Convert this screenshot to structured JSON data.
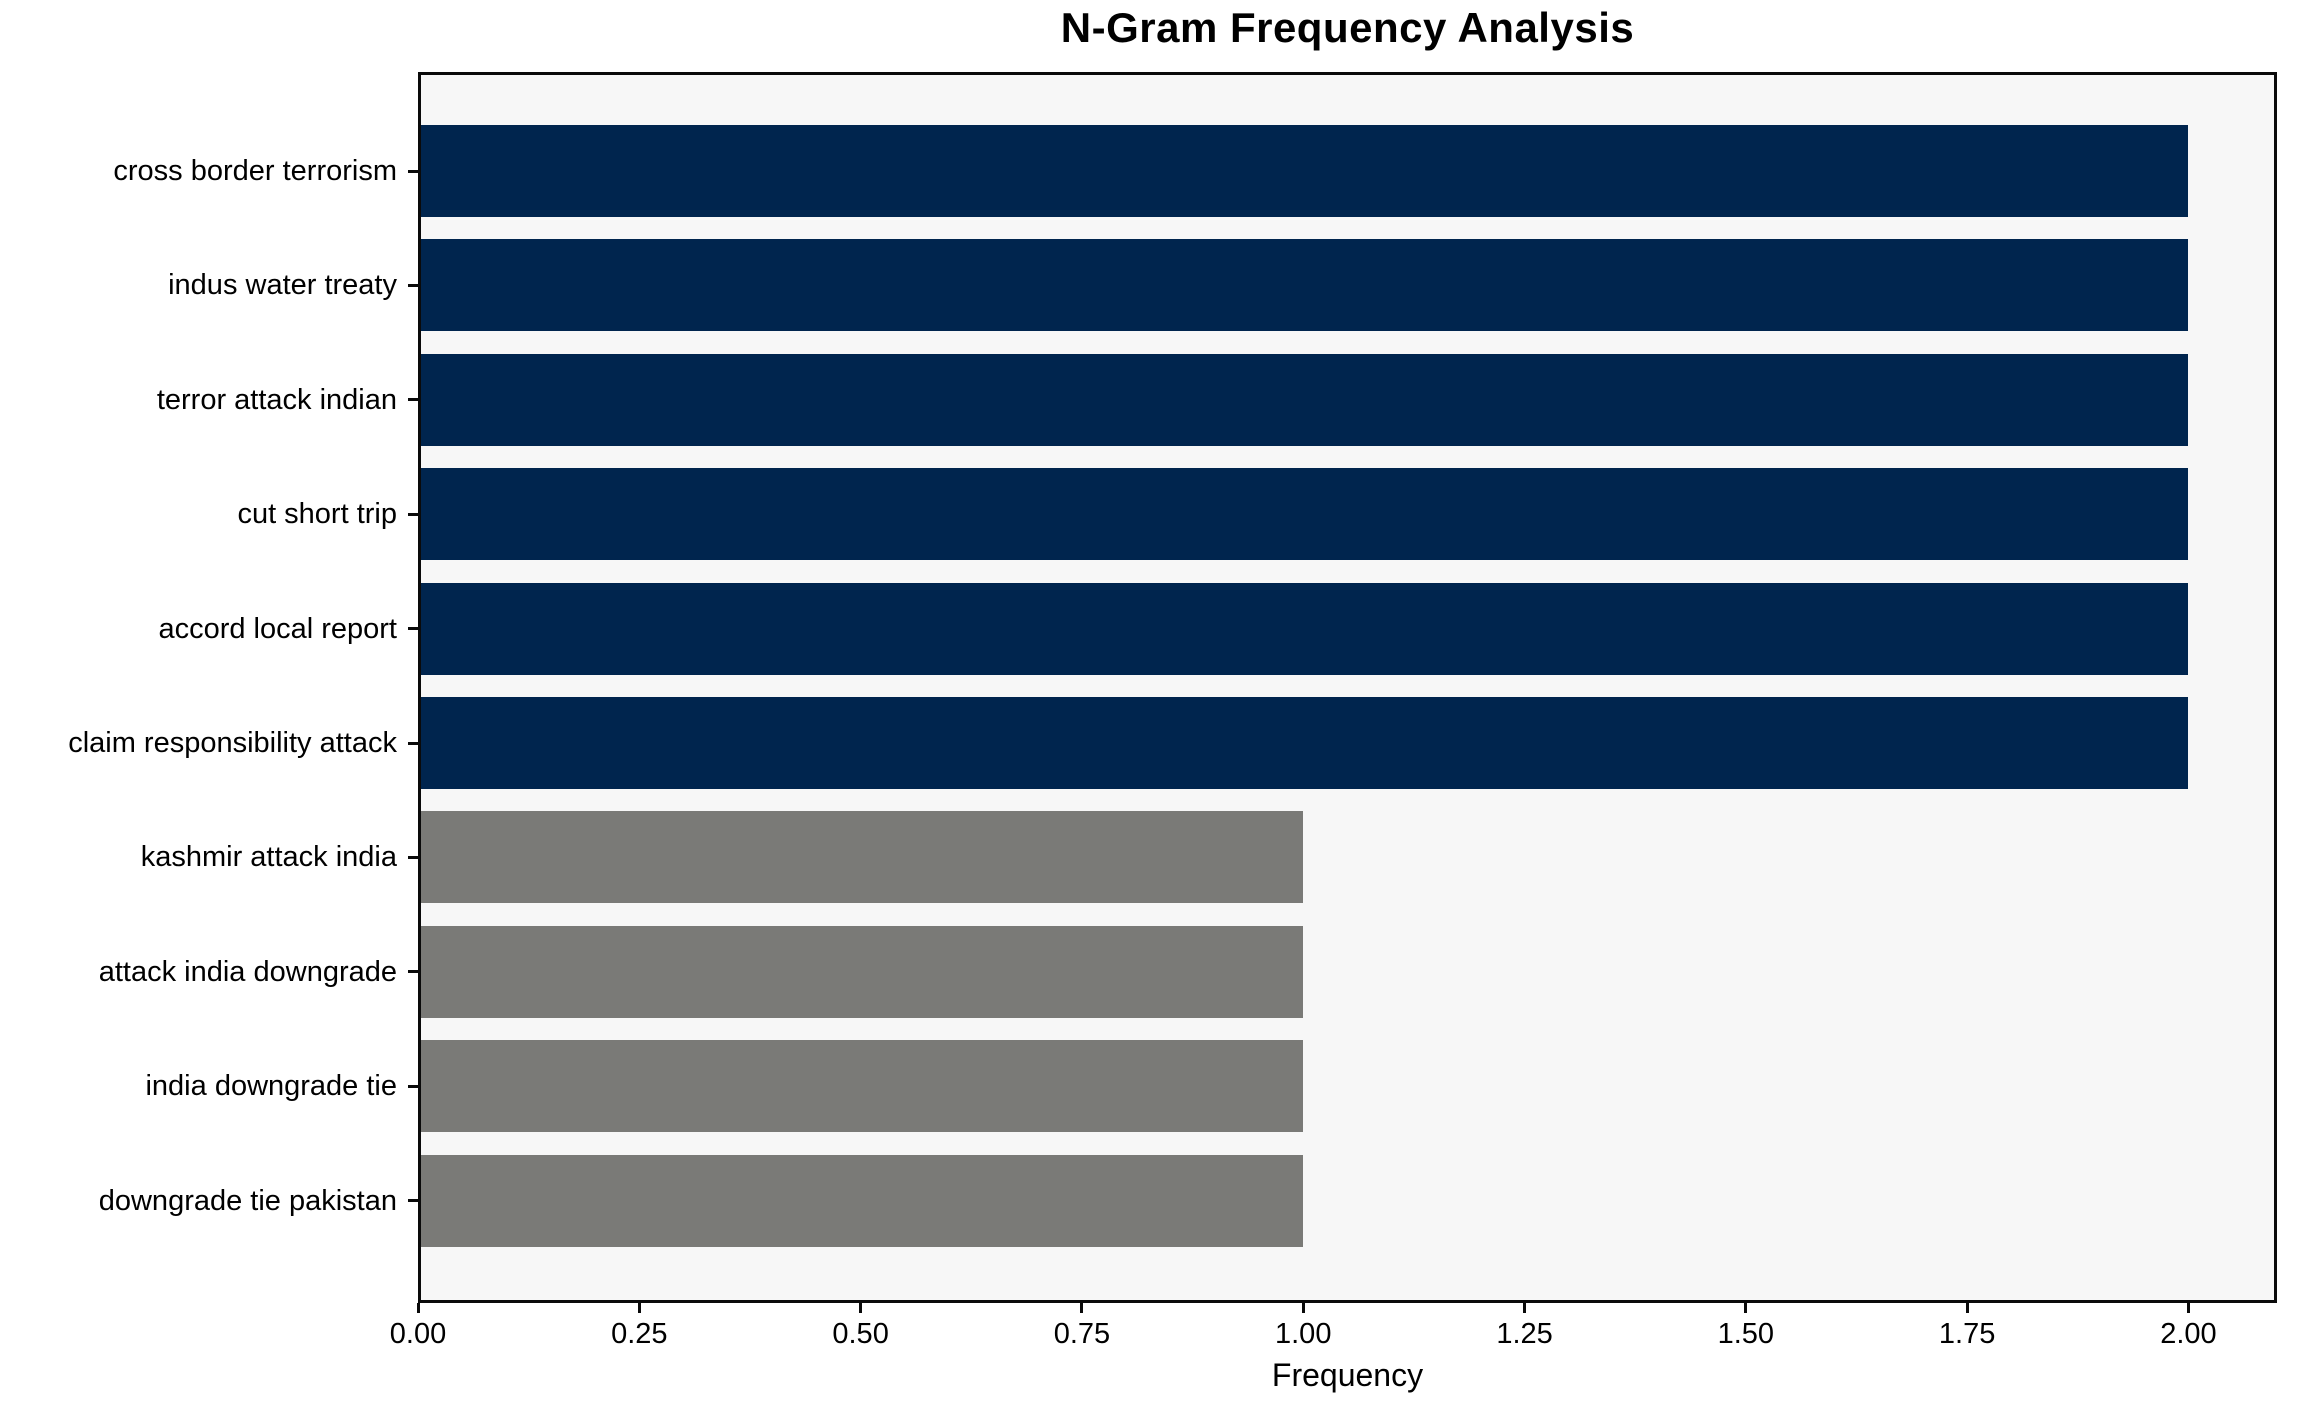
{
  "chart_data": {
    "type": "bar",
    "orientation": "horizontal",
    "title": "N-Gram Frequency Analysis",
    "xlabel": "Frequency",
    "ylabel": "",
    "categories": [
      "cross border terrorism",
      "indus water treaty",
      "terror attack indian",
      "cut short trip",
      "accord local report",
      "claim responsibility attack",
      "kashmir attack india",
      "attack india downgrade",
      "india downgrade tie",
      "downgrade tie pakistan"
    ],
    "values": [
      2,
      2,
      2,
      2,
      2,
      2,
      1,
      1,
      1,
      1
    ],
    "bar_colors": [
      "#00254e",
      "#00254e",
      "#00254e",
      "#00254e",
      "#00254e",
      "#00254e",
      "#7a7a77",
      "#7a7a77",
      "#7a7a77",
      "#7a7a77"
    ],
    "xlim": [
      0,
      2.1
    ],
    "xticks": [
      0.0,
      0.25,
      0.5,
      0.75,
      1.0,
      1.25,
      1.5,
      1.75,
      2.0
    ],
    "xtick_labels": [
      "0.00",
      "0.25",
      "0.50",
      "0.75",
      "1.00",
      "1.25",
      "1.50",
      "1.75",
      "2.00"
    ],
    "grid": false,
    "legend": null,
    "colors": {
      "plot_background": "#f7f7f7",
      "figure_background": "#ffffff",
      "navy_bar": "#00254e",
      "gray_bar": "#7a7a77",
      "spine": "#0a0a0a",
      "text": "#000000"
    }
  }
}
